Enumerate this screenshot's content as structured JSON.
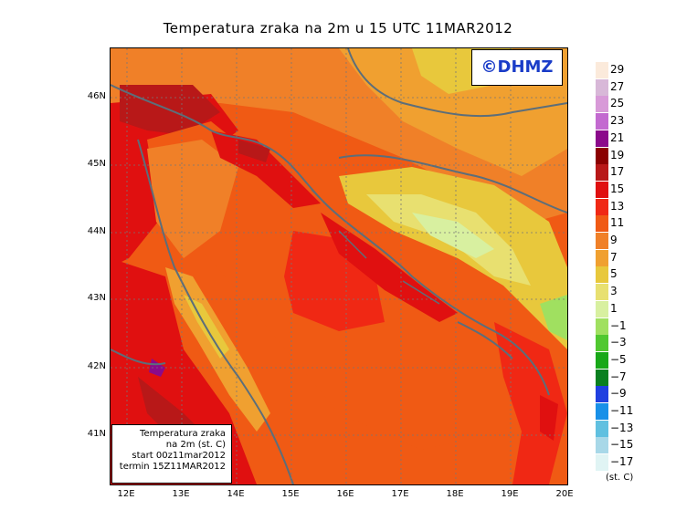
{
  "title": "Temperatura zraka na 2m u 15 UTC 11MAR2012",
  "logo": "©DHMZ",
  "info": {
    "line1": "Temperatura zraka",
    "line2": "na 2m (st. C)",
    "line3": "start 00z11mar2012",
    "line4": "termin 15Z11MAR2012"
  },
  "lat_labels": [
    "46N",
    "45N",
    "44N",
    "43N",
    "42N",
    "41N"
  ],
  "lon_labels": [
    "12E",
    "13E",
    "14E",
    "15E",
    "16E",
    "17E",
    "18E",
    "19E",
    "20E"
  ],
  "legend": {
    "labels": [
      "29",
      "27",
      "25",
      "23",
      "21",
      "19",
      "17",
      "15",
      "13",
      "11",
      "9",
      "7",
      "5",
      "3",
      "1",
      "−1",
      "−3",
      "−5",
      "−7",
      "−9",
      "−11",
      "−13",
      "−15",
      "−17"
    ],
    "colors": [
      "#fbeadb",
      "#d8b8d8",
      "#d89ad8",
      "#c36ad0",
      "#8b0a8b",
      "#8b0000",
      "#b81818",
      "#e01010",
      "#f02814",
      "#f05a14",
      "#f08028",
      "#f0a030",
      "#e8c83c",
      "#e8e070",
      "#d8f0a0",
      "#a0e060",
      "#50c830",
      "#18a818",
      "#0a8020",
      "#2040e0",
      "#1890e8",
      "#60c0e0",
      "#a8d8e8",
      "#e0f4f4"
    ],
    "units": "(st. C)"
  }
}
